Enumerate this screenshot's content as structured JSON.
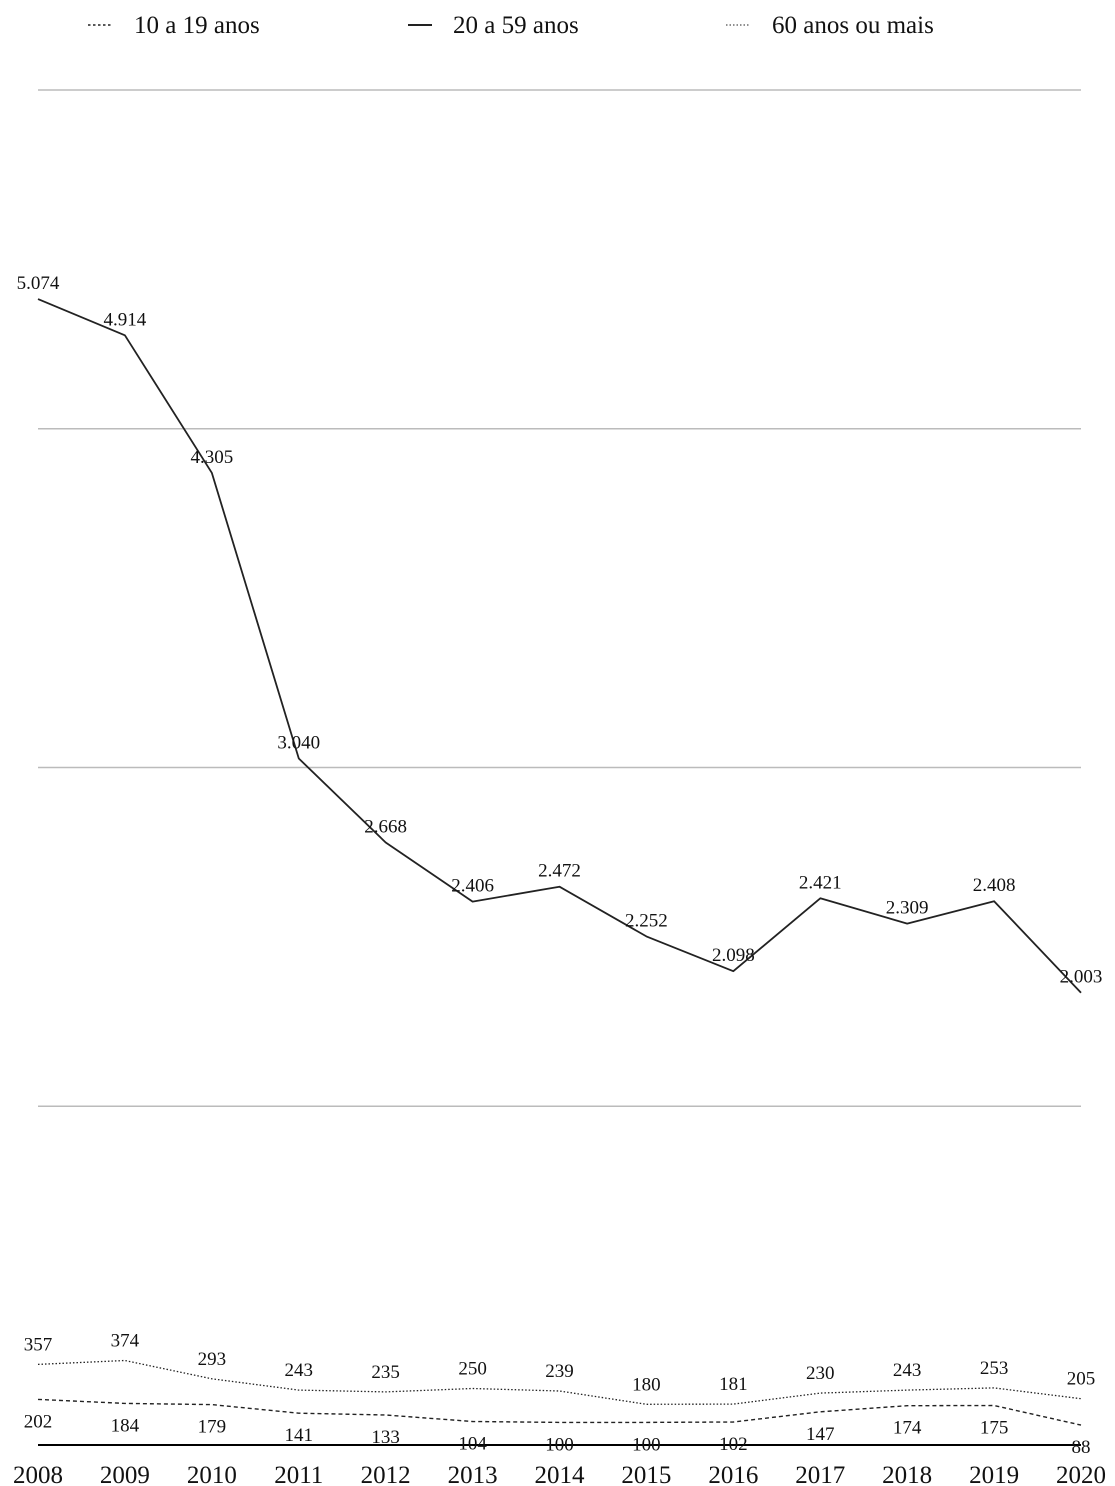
{
  "chart_data": {
    "type": "line",
    "title": "",
    "xlabel": "",
    "ylabel": "",
    "x": [
      "2008",
      "2009",
      "2010",
      "2011",
      "2012",
      "2013",
      "2014",
      "2015",
      "2016",
      "2017",
      "2018",
      "2019",
      "2020"
    ],
    "ylim": [
      0,
      6000
    ],
    "grid": true,
    "legend_position": "top",
    "series": [
      {
        "name": "10 a 19 anos",
        "style": "dashed",
        "values": [
          202,
          184,
          179,
          141,
          133,
          104,
          100,
          100,
          102,
          147,
          174,
          175,
          88
        ],
        "labels": [
          "202",
          "184",
          "179",
          "141",
          "133",
          "104",
          "100",
          "100",
          "102",
          "147",
          "174",
          "175",
          "88"
        ]
      },
      {
        "name": "20 a 59 anos",
        "style": "solid",
        "values": [
          5074,
          4914,
          4305,
          3040,
          2668,
          2406,
          2472,
          2252,
          2098,
          2421,
          2309,
          2408,
          2003
        ],
        "labels": [
          "5.074",
          "4.914",
          "4.305",
          "3.040",
          "2.668",
          "2.406",
          "2.472",
          "2.252",
          "2.098",
          "2.421",
          "2.309",
          "2.408",
          "2.003"
        ]
      },
      {
        "name": "60 anos ou mais",
        "style": "dotted",
        "values": [
          357,
          374,
          293,
          243,
          235,
          250,
          239,
          180,
          181,
          230,
          243,
          253,
          205
        ],
        "labels": [
          "357",
          "374",
          "293",
          "243",
          "235",
          "250",
          "239",
          "180",
          "181",
          "230",
          "243",
          "253",
          "205"
        ]
      }
    ],
    "colors": {
      "line": "#222222",
      "grid": "#bbbbbb",
      "axis": "#000000"
    }
  }
}
